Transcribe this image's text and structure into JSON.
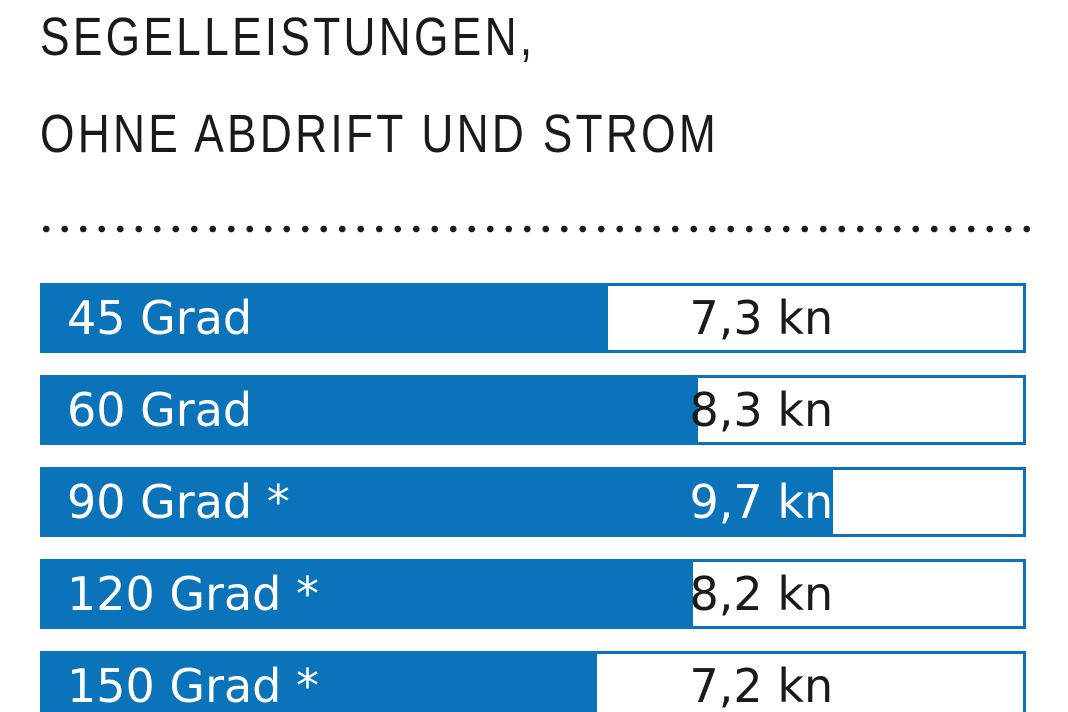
{
  "chart_data": {
    "type": "bar",
    "orientation": "horizontal",
    "title": "SEGELLEISTUNGEN, OHNE ABDRIFT UND STROM",
    "title_lines": [
      "SEGELLEISTUNGEN,",
      "OHNE ABDRIFT UND STROM"
    ],
    "categories": [
      "45 Grad",
      "60 Grad",
      "90 Grad *",
      "120 Grad *",
      "150 Grad *"
    ],
    "values": [
      7.3,
      8.3,
      9.7,
      8.2,
      7.2
    ],
    "unit": "kn",
    "value_labels": [
      "7,3 kn",
      "8,3 kn",
      "9,7 kn",
      "8,2 kn",
      "7,2 kn"
    ],
    "xlabel": "",
    "ylabel": "",
    "xlim": [
      0,
      12.3
    ],
    "grid": false,
    "legend": false,
    "bar_end_percent": [
      58.0,
      67.1,
      80.9,
      66.6,
      56.8
    ],
    "value_label_center_percent": 73.3,
    "value_inside_bar": [
      false,
      false,
      true,
      false,
      false
    ],
    "colors": {
      "bar": "#0a73ba",
      "bar_border": "#0a73ba",
      "category_label": "#ffffff",
      "value_outside": "#1a1a1a",
      "value_inside": "#ffffff",
      "title": "#1a1a1a",
      "dots": "#1c1c1c"
    }
  }
}
